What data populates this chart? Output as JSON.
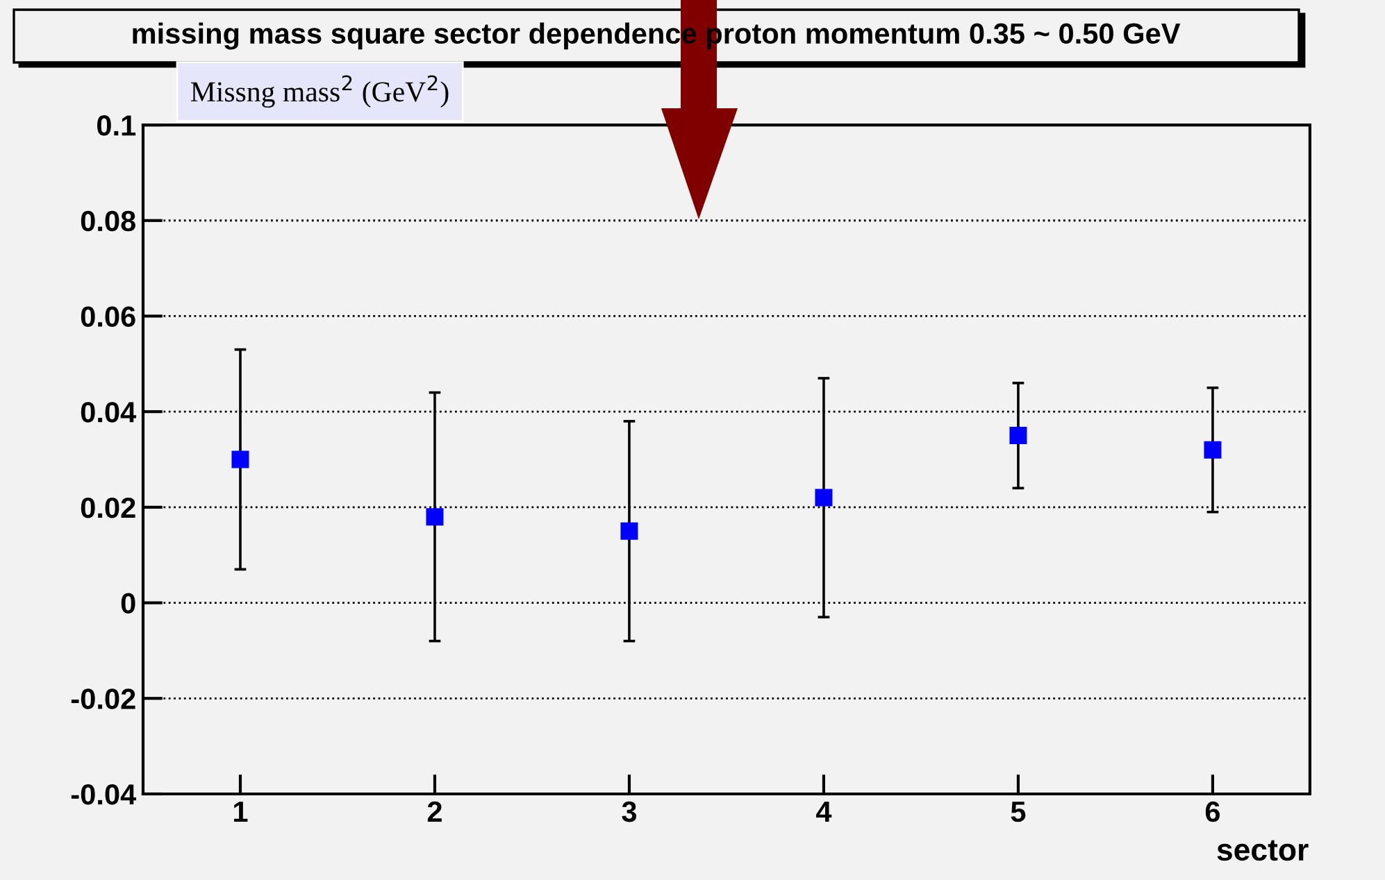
{
  "chart_data": {
    "type": "scatter",
    "title": "missing mass square sector dependence proton momentum 0.35 ~ 0.50 GeV",
    "ylabel": "Missng mass$^{2}$ (GeV$^{2}$)",
    "xlabel": "sector",
    "x": [
      1,
      2,
      3,
      4,
      5,
      6
    ],
    "series": [
      {
        "color": "#0000ff",
        "values": [
          0.03,
          0.018,
          0.015,
          0.022,
          0.035,
          0.032
        ],
        "errors": [
          0.023,
          0.026,
          0.023,
          0.025,
          0.011,
          0.013
        ]
      }
    ],
    "xlim": [
      0.5,
      6.5
    ],
    "xticks": [
      1,
      2,
      3,
      4,
      5,
      6
    ],
    "ylim": [
      -0.04,
      0.1
    ],
    "yticks": [
      -0.04,
      -0.02,
      0,
      0.02,
      0.04,
      0.06,
      0.08,
      0.1
    ],
    "grid": "y",
    "marker": "square",
    "legend": false
  }
}
